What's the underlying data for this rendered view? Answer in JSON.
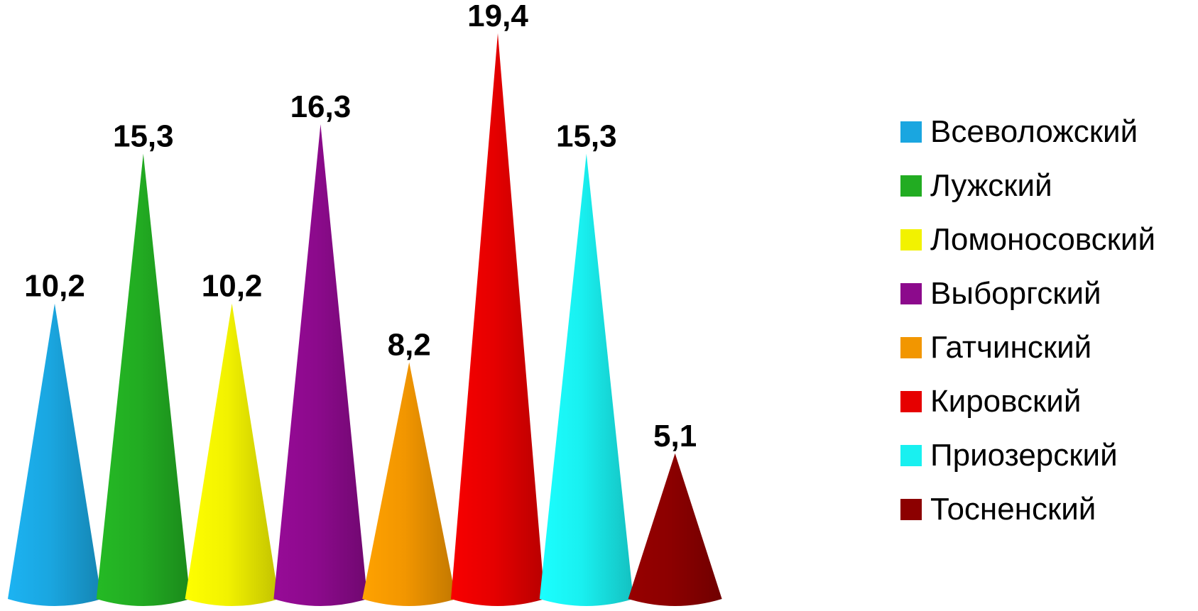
{
  "chart_data": {
    "type": "bar",
    "shape": "cone",
    "categories": [
      "Всеволожский",
      "Лужский",
      "Ломоносовский",
      "Выборгский",
      "Гатчинский",
      "Кировский",
      "Приозерский",
      "Тосненский"
    ],
    "values": [
      10.2,
      15.3,
      10.2,
      16.3,
      8.2,
      19.4,
      15.3,
      5.1
    ],
    "data_labels": [
      "10,2",
      "15,3",
      "10,2",
      "16,3",
      "8,2",
      "19,4",
      "15,3",
      "5,1"
    ],
    "colors": [
      "#1aa6e0",
      "#22ac22",
      "#f2f200",
      "#8c0a8c",
      "#f29600",
      "#e60000",
      "#19f0f0",
      "#8c0000"
    ],
    "legend_position": "right",
    "grid": false
  }
}
